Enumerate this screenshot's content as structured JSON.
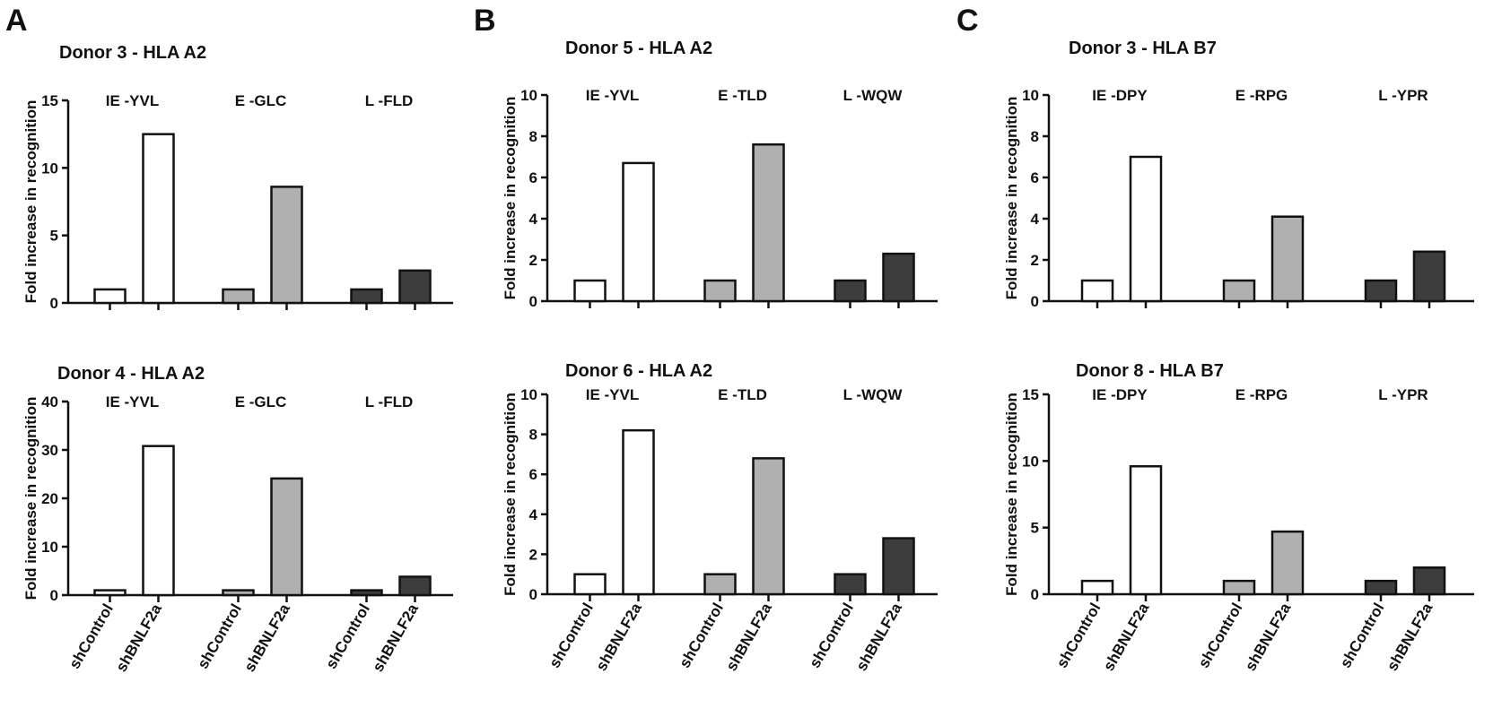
{
  "panels": [
    "A",
    "B",
    "C"
  ],
  "x_categories": [
    "shControl",
    "shBNLF2a"
  ],
  "group_fills": [
    "#ffffff",
    "#b0b0b0",
    "#3d3d3d"
  ],
  "chart_data": [
    {
      "type": "bar",
      "panel": "A",
      "title": "Donor 3 - HLA A2",
      "ylabel": "Fold increase in recognition",
      "ylim": [
        0,
        15
      ],
      "yticks": [
        0,
        5,
        10,
        15
      ],
      "groups": [
        {
          "name": "IE -YVL",
          "values": [
            1,
            12.5
          ]
        },
        {
          "name": "E -GLC",
          "values": [
            1,
            8.6
          ]
        },
        {
          "name": "L -FLD",
          "values": [
            1,
            2.4
          ]
        }
      ]
    },
    {
      "type": "bar",
      "panel": "A",
      "title": "Donor 4 - HLA A2",
      "ylabel": "Fold increase in recognition",
      "ylim": [
        0,
        40
      ],
      "yticks": [
        0,
        10,
        20,
        30,
        40
      ],
      "groups": [
        {
          "name": "IE -YVL",
          "values": [
            1,
            30.8
          ]
        },
        {
          "name": "E -GLC",
          "values": [
            1,
            24.1
          ]
        },
        {
          "name": "L -FLD",
          "values": [
            1,
            3.8
          ]
        }
      ]
    },
    {
      "type": "bar",
      "panel": "B",
      "title": "Donor 5 - HLA A2",
      "ylabel": "Fold increase in recognition",
      "ylim": [
        0,
        10
      ],
      "yticks": [
        0,
        2,
        4,
        6,
        8,
        10
      ],
      "groups": [
        {
          "name": "IE -YVL",
          "values": [
            1,
            6.7
          ]
        },
        {
          "name": "E -TLD",
          "values": [
            1,
            7.6
          ]
        },
        {
          "name": "L -WQW",
          "values": [
            1,
            2.3
          ]
        }
      ]
    },
    {
      "type": "bar",
      "panel": "B",
      "title": "Donor 6 - HLA A2",
      "ylabel": "Fold increase in recognition",
      "ylim": [
        0,
        10
      ],
      "yticks": [
        0,
        2,
        4,
        6,
        8,
        10
      ],
      "groups": [
        {
          "name": "IE -YVL",
          "values": [
            1,
            8.2
          ]
        },
        {
          "name": "E -TLD",
          "values": [
            1,
            6.8
          ]
        },
        {
          "name": "L -WQW",
          "values": [
            1,
            2.8
          ]
        }
      ]
    },
    {
      "type": "bar",
      "panel": "C",
      "title": "Donor 3 - HLA B7",
      "ylabel": "Fold increase in recognition",
      "ylim": [
        0,
        10
      ],
      "yticks": [
        0,
        2,
        4,
        6,
        8,
        10
      ],
      "groups": [
        {
          "name": "IE -DPY",
          "values": [
            1,
            7.0
          ]
        },
        {
          "name": "E -RPG",
          "values": [
            1,
            4.1
          ]
        },
        {
          "name": "L -YPR",
          "values": [
            1,
            2.4
          ]
        }
      ]
    },
    {
      "type": "bar",
      "panel": "C",
      "title": "Donor 8 - HLA B7",
      "ylabel": "Fold increase in recognition",
      "ylim": [
        0,
        15
      ],
      "yticks": [
        0,
        5,
        10,
        15
      ],
      "groups": [
        {
          "name": "IE -DPY",
          "values": [
            1,
            9.6
          ]
        },
        {
          "name": "E -RPG",
          "values": [
            1,
            4.7
          ]
        },
        {
          "name": "L -YPR",
          "values": [
            1,
            2.0
          ]
        }
      ]
    }
  ]
}
